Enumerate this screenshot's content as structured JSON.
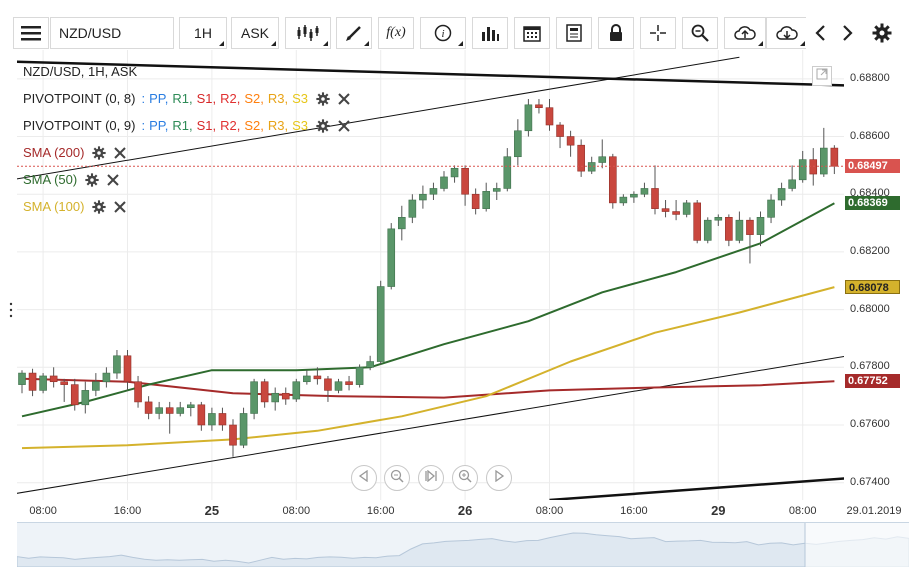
{
  "toolbar": {
    "symbol": "NZD/USD",
    "timeframe": "1H",
    "price_type": "ASK",
    "function_label": "f(x)",
    "icons": [
      "menu-icon",
      "candlestick-type-icon",
      "draw-pen-icon",
      "function-icon",
      "info-icon",
      "bar-chart-icon",
      "calendar-icon",
      "news-icon",
      "lock-icon",
      "crosshair-icon",
      "zoom-search-icon",
      "cloud-upload-icon",
      "cloud-download-icon",
      "chevron-left-icon",
      "chevron-right-icon",
      "gear-icon"
    ]
  },
  "legend": {
    "title": "NZD/USD, 1H, ASK",
    "pivot1": {
      "name": "PIVOTPOINT (0, 8)",
      "items": [
        ":",
        "PP,",
        "R1,",
        "S1,",
        "R2,",
        "S2,",
        "R3,",
        "S3"
      ]
    },
    "pivot2": {
      "name": "PIVOTPOINT (0, 9)",
      "items": [
        ":",
        "PP,",
        "R1,",
        "S1,",
        "R2,",
        "S2,",
        "R3,",
        "S3"
      ]
    },
    "sma200": "SMA (200)",
    "sma50": "SMA (50)",
    "sma100": "SMA (100)"
  },
  "colors": {
    "up": "#5a9669",
    "down": "#c9473e",
    "sma200": "#a52a2a",
    "sma50": "#2e6b2e",
    "sma100": "#d4b22c",
    "current": "#d9534f",
    "pp": "#2a7de1",
    "r1": "#2e8b57",
    "s1": "#d62728",
    "r2": "#e03030",
    "s2": "#ff7f0e",
    "r3": "#e8a317",
    "s3": "#e6c619"
  },
  "price_tags": [
    {
      "name": "current",
      "text": "0.68497",
      "value": 0.68497,
      "color": "#d9534f"
    },
    {
      "name": "sma50",
      "text": "0.68369",
      "value": 0.68369,
      "color": "#2e6b2e"
    },
    {
      "name": "sma100",
      "text": "0.68078",
      "value": 0.68078,
      "color": "#d4b22c"
    },
    {
      "name": "sma200",
      "text": "0.67752",
      "value": 0.67752,
      "color": "#a52a2a"
    }
  ],
  "chart_data": {
    "type": "candlestick",
    "title": "NZD/USD, 1H, ASK",
    "ylim": [
      0.6734,
      0.689
    ],
    "y_ticks": [
      0.674,
      0.676,
      0.678,
      0.68,
      0.682,
      0.684,
      0.686,
      0.688
    ],
    "y_tick_labels": [
      "0.67400",
      "0.67600",
      "0.67800",
      "0.68000",
      "0.68200",
      "0.68400",
      "0.68600",
      "0.68800"
    ],
    "x_tick_labels": [
      {
        "text": "08:00",
        "i": 2,
        "bold": false
      },
      {
        "text": "16:00",
        "i": 10,
        "bold": false
      },
      {
        "text": "25",
        "i": 18,
        "bold": true
      },
      {
        "text": "08:00",
        "i": 26,
        "bold": false
      },
      {
        "text": "16:00",
        "i": 34,
        "bold": false
      },
      {
        "text": "26",
        "i": 42,
        "bold": true
      },
      {
        "text": "08:00",
        "i": 50,
        "bold": false
      },
      {
        "text": "16:00",
        "i": 58,
        "bold": false
      },
      {
        "text": "29",
        "i": 66,
        "bold": true
      },
      {
        "text": "08:00",
        "i": 74,
        "bold": false
      },
      {
        "text": "29.01.2019",
        "i": 78,
        "bold": false
      }
    ],
    "current_price": 0.68497,
    "candles": [
      [
        0.6774,
        0.6779,
        0.6771,
        0.6778
      ],
      [
        0.6778,
        0.67795,
        0.677,
        0.6772
      ],
      [
        0.6772,
        0.6778,
        0.6771,
        0.6777
      ],
      [
        0.6777,
        0.678,
        0.6773,
        0.6775
      ],
      [
        0.6775,
        0.6776,
        0.6768,
        0.6774
      ],
      [
        0.6774,
        0.6776,
        0.6765,
        0.6767
      ],
      [
        0.6767,
        0.6775,
        0.6764,
        0.6772
      ],
      [
        0.6772,
        0.6778,
        0.677,
        0.6775
      ],
      [
        0.6775,
        0.678,
        0.6773,
        0.6778
      ],
      [
        0.6778,
        0.6786,
        0.6776,
        0.6784
      ],
      [
        0.6784,
        0.6786,
        0.6772,
        0.6775
      ],
      [
        0.6775,
        0.6777,
        0.6766,
        0.6768
      ],
      [
        0.6768,
        0.677,
        0.6762,
        0.6764
      ],
      [
        0.6764,
        0.6768,
        0.6762,
        0.6766
      ],
      [
        0.6766,
        0.6768,
        0.6757,
        0.6764
      ],
      [
        0.6764,
        0.6768,
        0.6763,
        0.6766
      ],
      [
        0.6766,
        0.6768,
        0.6763,
        0.6767
      ],
      [
        0.6767,
        0.6768,
        0.6758,
        0.676
      ],
      [
        0.676,
        0.6766,
        0.6758,
        0.6764
      ],
      [
        0.6764,
        0.6766,
        0.6758,
        0.676
      ],
      [
        0.676,
        0.6762,
        0.6749,
        0.6753
      ],
      [
        0.6753,
        0.6766,
        0.6752,
        0.6764
      ],
      [
        0.6764,
        0.6776,
        0.6762,
        0.6775
      ],
      [
        0.6775,
        0.6776,
        0.6766,
        0.6768
      ],
      [
        0.6768,
        0.6773,
        0.6765,
        0.6771
      ],
      [
        0.6771,
        0.6773,
        0.6767,
        0.6769
      ],
      [
        0.6769,
        0.6776,
        0.6768,
        0.6775
      ],
      [
        0.6775,
        0.6779,
        0.6774,
        0.6777
      ],
      [
        0.6777,
        0.678,
        0.6774,
        0.6776
      ],
      [
        0.6776,
        0.6777,
        0.6768,
        0.6772
      ],
      [
        0.6772,
        0.6776,
        0.6771,
        0.6775
      ],
      [
        0.6775,
        0.6777,
        0.6772,
        0.6774
      ],
      [
        0.6774,
        0.6781,
        0.6773,
        0.678
      ],
      [
        0.678,
        0.6784,
        0.6779,
        0.6782
      ],
      [
        0.6782,
        0.681,
        0.6781,
        0.6808
      ],
      [
        0.6808,
        0.683,
        0.6807,
        0.6828
      ],
      [
        0.6828,
        0.6836,
        0.6824,
        0.6832
      ],
      [
        0.6832,
        0.684,
        0.683,
        0.6838
      ],
      [
        0.6838,
        0.6843,
        0.6835,
        0.684
      ],
      [
        0.684,
        0.6844,
        0.6838,
        0.6842
      ],
      [
        0.6842,
        0.6848,
        0.6841,
        0.6846
      ],
      [
        0.6846,
        0.685,
        0.6844,
        0.6849
      ],
      [
        0.6849,
        0.685,
        0.6836,
        0.684
      ],
      [
        0.684,
        0.6842,
        0.6833,
        0.6835
      ],
      [
        0.6835,
        0.6844,
        0.6834,
        0.6841
      ],
      [
        0.6841,
        0.6844,
        0.6838,
        0.6842
      ],
      [
        0.6842,
        0.6856,
        0.6841,
        0.6853
      ],
      [
        0.6853,
        0.6866,
        0.685,
        0.6862
      ],
      [
        0.6862,
        0.6873,
        0.686,
        0.6871
      ],
      [
        0.6871,
        0.6873,
        0.6868,
        0.687
      ],
      [
        0.687,
        0.6873,
        0.6862,
        0.6864
      ],
      [
        0.6864,
        0.6865,
        0.6856,
        0.686
      ],
      [
        0.686,
        0.6862,
        0.6853,
        0.6857
      ],
      [
        0.6857,
        0.6859,
        0.6846,
        0.6848
      ],
      [
        0.6848,
        0.6853,
        0.6847,
        0.6851
      ],
      [
        0.6851,
        0.6859,
        0.6849,
        0.6853
      ],
      [
        0.6853,
        0.6854,
        0.6835,
        0.6837
      ],
      [
        0.6837,
        0.684,
        0.6836,
        0.6839
      ],
      [
        0.6839,
        0.6841,
        0.6837,
        0.684
      ],
      [
        0.684,
        0.6844,
        0.6839,
        0.6842
      ],
      [
        0.6842,
        0.685,
        0.6833,
        0.6835
      ],
      [
        0.6835,
        0.6838,
        0.6832,
        0.6834
      ],
      [
        0.6834,
        0.6838,
        0.6831,
        0.6833
      ],
      [
        0.6833,
        0.6838,
        0.6832,
        0.6837
      ],
      [
        0.6837,
        0.6838,
        0.6823,
        0.6824
      ],
      [
        0.6824,
        0.6832,
        0.6823,
        0.6831
      ],
      [
        0.6831,
        0.6833,
        0.6829,
        0.6832
      ],
      [
        0.6832,
        0.6833,
        0.6822,
        0.6824
      ],
      [
        0.6824,
        0.6834,
        0.6823,
        0.6831
      ],
      [
        0.6831,
        0.6832,
        0.6816,
        0.6826
      ],
      [
        0.6826,
        0.6834,
        0.6822,
        0.6832
      ],
      [
        0.6832,
        0.684,
        0.683,
        0.6838
      ],
      [
        0.6838,
        0.6844,
        0.6836,
        0.6842
      ],
      [
        0.6842,
        0.685,
        0.6841,
        0.6845
      ],
      [
        0.6845,
        0.6855,
        0.6844,
        0.6852
      ],
      [
        0.6852,
        0.6856,
        0.6843,
        0.6847
      ],
      [
        0.6847,
        0.6863,
        0.6846,
        0.6856
      ],
      [
        0.6856,
        0.6857,
        0.6847,
        0.68497
      ]
    ],
    "series": [
      {
        "name": "SMA (200)",
        "color": "#a52a2a",
        "values": [
          [
            0,
            0.6776
          ],
          [
            10,
            0.6775
          ],
          [
            20,
            0.6771
          ],
          [
            30,
            0.677
          ],
          [
            40,
            0.67695
          ],
          [
            50,
            0.6772
          ],
          [
            60,
            0.6773
          ],
          [
            70,
            0.67738
          ],
          [
            77,
            0.67752
          ]
        ]
      },
      {
        "name": "SMA (50)",
        "color": "#2e6b2e",
        "values": [
          [
            0,
            0.6763
          ],
          [
            6,
            0.6768
          ],
          [
            12,
            0.6774
          ],
          [
            18,
            0.6779
          ],
          [
            26,
            0.6779
          ],
          [
            33,
            0.678
          ],
          [
            40,
            0.6788
          ],
          [
            48,
            0.6796
          ],
          [
            55,
            0.6806
          ],
          [
            62,
            0.6813
          ],
          [
            70,
            0.6823
          ],
          [
            77,
            0.68369
          ]
        ]
      },
      {
        "name": "SMA (100)",
        "color": "#d4b22c",
        "values": [
          [
            0,
            0.6752
          ],
          [
            10,
            0.6753
          ],
          [
            20,
            0.6755
          ],
          [
            28,
            0.6758
          ],
          [
            36,
            0.6763
          ],
          [
            44,
            0.677
          ],
          [
            52,
            0.6782
          ],
          [
            60,
            0.6792
          ],
          [
            68,
            0.6799
          ],
          [
            77,
            0.68078
          ]
        ]
      }
    ],
    "trendlines": [
      {
        "name": "resistance-channel-upper",
        "width": 2.5,
        "color": "#111",
        "from": [
          -1,
          0.6886
        ],
        "to": [
          80,
          0.68775
        ]
      },
      {
        "name": "pitchfork-upper",
        "width": 1,
        "color": "#111",
        "from": [
          -1,
          0.6845
        ],
        "to": [
          68,
          0.68875
        ]
      },
      {
        "name": "support-line-lower",
        "width": 1,
        "color": "#111",
        "from": [
          -1,
          0.6736
        ],
        "to": [
          80,
          0.6785
        ]
      },
      {
        "name": "support-channel-lower",
        "width": 2.5,
        "color": "#111",
        "from": [
          50,
          0.6734
        ],
        "to": [
          80,
          0.6742
        ]
      }
    ]
  }
}
